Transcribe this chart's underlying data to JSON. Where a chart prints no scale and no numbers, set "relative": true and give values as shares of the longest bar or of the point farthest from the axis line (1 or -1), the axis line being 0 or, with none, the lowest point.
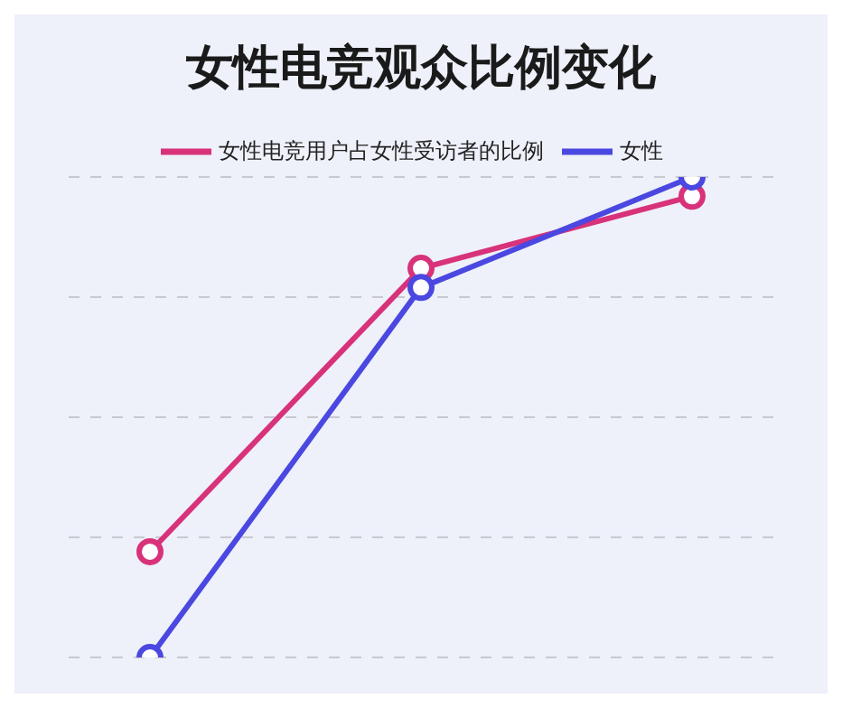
{
  "chart_data": {
    "type": "line",
    "title": "女性电竞观众比例变化",
    "relative": true,
    "categories": [
      null,
      null,
      null
    ],
    "series": [
      {
        "name": "女性电竞用户占女性受访者的比例",
        "color": "#d8327a",
        "values": [
          0.22,
          0.81,
          0.96
        ]
      },
      {
        "name": "女性",
        "color": "#4a48e0",
        "values": [
          0,
          0.77,
          1
        ]
      }
    ],
    "marker": "circle",
    "line_style": "solid",
    "grid": "y",
    "legend": "top"
  }
}
